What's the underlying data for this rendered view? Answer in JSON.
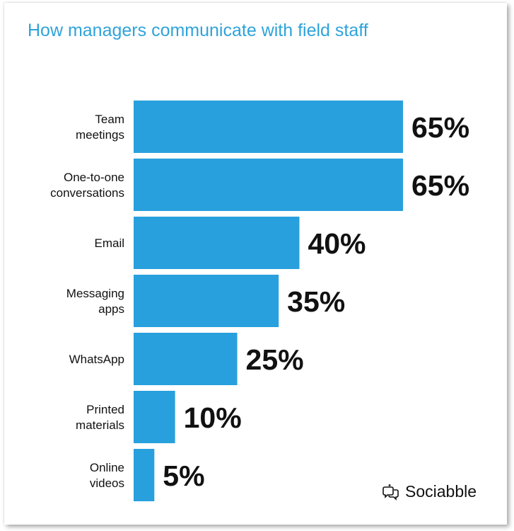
{
  "chart_data": {
    "type": "bar",
    "orientation": "horizontal",
    "title": "How managers communicate with field staff",
    "categories": [
      [
        "Team",
        "meetings"
      ],
      [
        "One-to-one",
        "conversations"
      ],
      [
        "Email"
      ],
      [
        "Messaging",
        "apps"
      ],
      [
        "WhatsApp"
      ],
      [
        "Printed",
        "materials"
      ],
      [
        "Online",
        "videos"
      ]
    ],
    "values": [
      65,
      65,
      40,
      35,
      25,
      10,
      5
    ],
    "value_labels": [
      "65%",
      "65%",
      "40%",
      "35%",
      "25%",
      "10%",
      "5%"
    ],
    "xlim": [
      0,
      65
    ],
    "bar_color": "#28a0dd",
    "label_color": "#111111",
    "legend": "none",
    "grid": false
  },
  "branding": {
    "name": "Sociabble",
    "icon": "chat-bubbles-icon"
  },
  "colors": {
    "title": "#2fa3da",
    "bar": "#28a0dd"
  }
}
